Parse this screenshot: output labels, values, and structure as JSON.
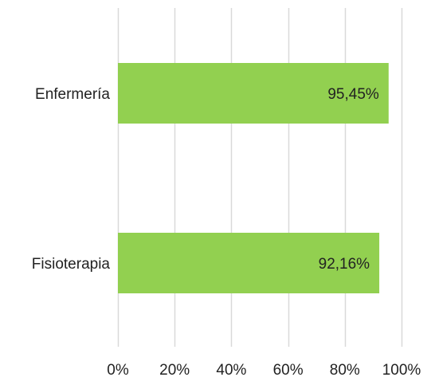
{
  "chart_data": {
    "type": "bar",
    "orientation": "horizontal",
    "categories": [
      "Enfermería",
      "Fisioterapia"
    ],
    "values": [
      95.45,
      92.16
    ],
    "value_labels": [
      "95,45%",
      "92,16%"
    ],
    "xlim": [
      0,
      100
    ],
    "x_ticks": [
      0,
      20,
      40,
      60,
      80,
      100
    ],
    "x_tick_labels": [
      "0%",
      "20%",
      "40%",
      "60%",
      "80%",
      "100%"
    ],
    "grid": true,
    "legend": "none",
    "bar_color": "#92d050",
    "grid_color": "#d9d9d9",
    "title": "",
    "xlabel": "",
    "ylabel": ""
  }
}
